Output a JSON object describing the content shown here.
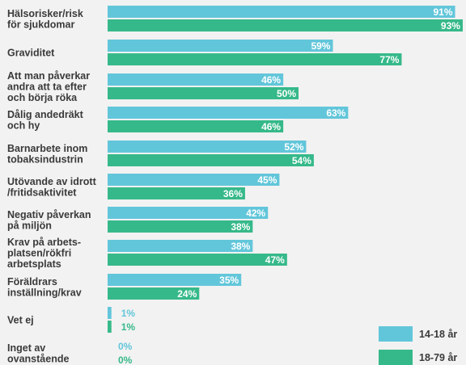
{
  "chart_data": {
    "type": "bar",
    "orientation": "horizontal",
    "title": "",
    "xlabel": "",
    "ylabel": "",
    "xlim": [
      0,
      100
    ],
    "grid": false,
    "legend_position": "bottom-right",
    "categories": [
      [
        "Hälsorisker/risk",
        "för sjukdomar"
      ],
      [
        "Graviditet"
      ],
      [
        "Att man påverkar",
        "andra att ta efter",
        "och börja röka"
      ],
      [
        "Dålig andedräkt",
        "och hy"
      ],
      [
        "Barnarbete inom",
        "tobaksindustrin"
      ],
      [
        "Utövande av idrott",
        "/fritidsaktivitet"
      ],
      [
        "Negativ påverkan",
        "på miljön"
      ],
      [
        "Krav på arbets-",
        "platsen/rökfri",
        "arbetsplats"
      ],
      [
        "Föräldrars",
        "inställning/krav"
      ],
      [
        "Vet ej"
      ],
      [
        "Inget av",
        "ovanstående"
      ]
    ],
    "series": [
      {
        "name": "14-18 år",
        "color": "#62c6da",
        "values": [
          91,
          59,
          46,
          63,
          52,
          45,
          42,
          38,
          35,
          1,
          0
        ]
      },
      {
        "name": "18-79 år",
        "color": "#36b98a",
        "values": [
          93,
          77,
          50,
          46,
          54,
          36,
          38,
          47,
          24,
          1,
          0
        ]
      }
    ]
  }
}
